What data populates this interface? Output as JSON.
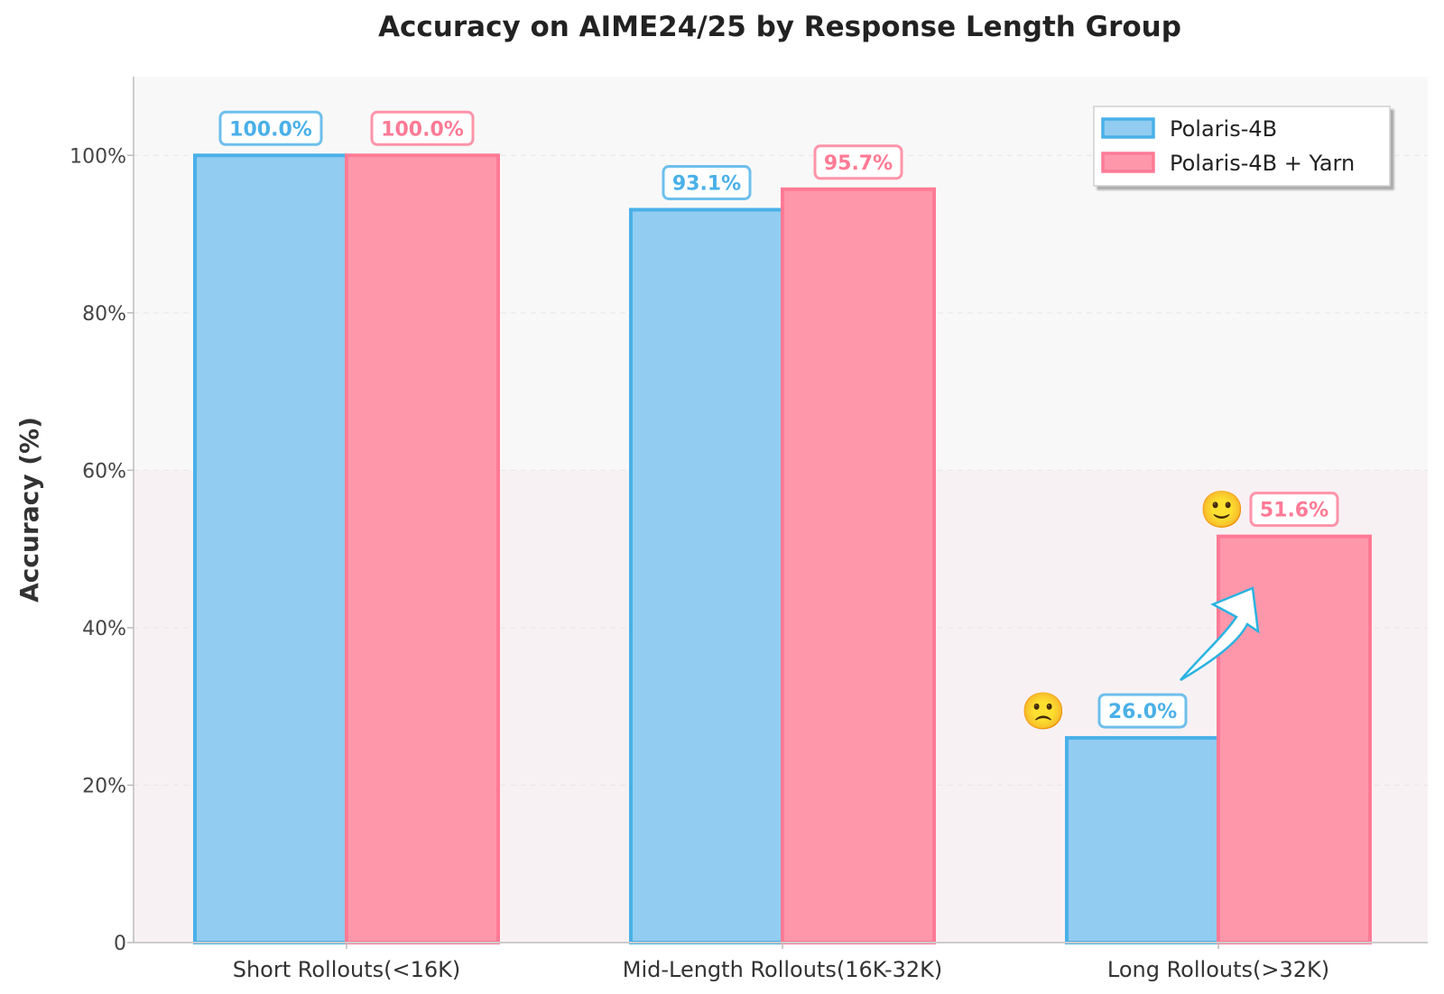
{
  "chart_data": {
    "type": "bar",
    "title": "Accuracy on AIME24/25 by Response Length Group",
    "ylabel": "Accuracy (%)",
    "xlabel": "",
    "ylim": [
      0,
      110
    ],
    "yticks": [
      0,
      20,
      40,
      60,
      80,
      100
    ],
    "ytick_labels": [
      "0",
      "20%",
      "40%",
      "60%",
      "80%",
      "100%"
    ],
    "categories": [
      "Short Rollouts(<16K)",
      "Mid-Length Rollouts(16K-32K)",
      "Long Rollouts(>32K)"
    ],
    "series": [
      {
        "name": "Polaris-4B",
        "values": [
          100.0,
          93.1,
          26.0
        ],
        "labels": [
          "100.0%",
          "93.1%",
          "26.0%"
        ],
        "color": "#4AB0E8",
        "fill": "#92CCF0"
      },
      {
        "name": "Polaris-4B + Yarn",
        "values": [
          100.0,
          95.7,
          51.6
        ],
        "labels": [
          "100.0%",
          "95.7%",
          "51.6%"
        ],
        "color": "#FF7A95",
        "fill": "#FF97AB"
      }
    ],
    "legend": "top-right",
    "grid": true,
    "annotations": {
      "sad_face": "🙁",
      "smile_face": "🙂",
      "arrow": "improvement-arrow",
      "arrow_color": "#2AB3E0"
    },
    "background": {
      "upper": "#F8F8F8",
      "lower": "#F8F1F4",
      "lower_band_max": 60
    }
  }
}
